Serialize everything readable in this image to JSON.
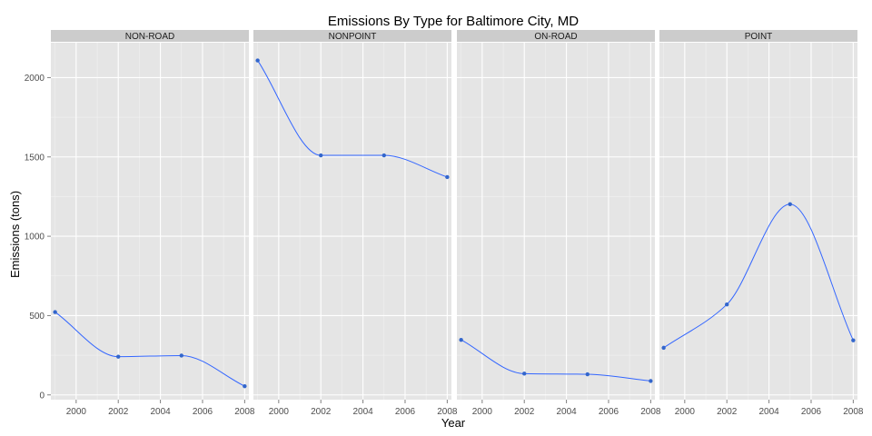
{
  "chart_data": {
    "type": "line",
    "title": "Emissions By Type for Baltimore City, MD",
    "xlabel": "Year",
    "ylabel": "Emissions (tons)",
    "x_ticks": [
      "2000",
      "2002",
      "2004",
      "2006",
      "2008"
    ],
    "y_ticks": [
      "0",
      "500",
      "1000",
      "1500",
      "2000"
    ],
    "xlim": [
      1998.8,
      2008.2
    ],
    "ylim": [
      -30,
      2220
    ],
    "smooth": true,
    "grid": true,
    "colors": {
      "line": "#3366ff",
      "point": "#3366cc",
      "panel_background": "#e5e5e5",
      "grid": "#ffffff",
      "strip_background": "#cccccc"
    },
    "x": [
      1999,
      2002,
      2005,
      2008
    ],
    "panels": [
      {
        "label": "NON-ROAD",
        "values": [
          522,
          241,
          248,
          55
        ]
      },
      {
        "label": "NONPOINT",
        "values": [
          2108,
          1510,
          1510,
          1373
        ]
      },
      {
        "label": "ON-ROAD",
        "values": [
          347,
          134,
          130,
          88
        ]
      },
      {
        "label": "POINT",
        "values": [
          297,
          570,
          1202,
          344
        ]
      }
    ]
  }
}
